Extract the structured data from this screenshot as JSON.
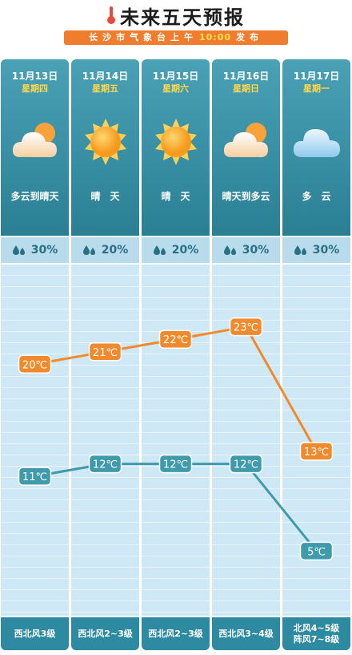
{
  "header": {
    "title": "未来五天预报",
    "issued_prefix": "长沙市气象台上午",
    "issued_time": "10:00",
    "issued_suffix": "发布"
  },
  "days": [
    {
      "date": "11月13日",
      "weekday": "星期四",
      "icon": "cloud-sun-icon",
      "condition": "多云到晴天",
      "precip": "30%",
      "wind": [
        "西北风3级"
      ]
    },
    {
      "date": "11月14日",
      "weekday": "星期五",
      "icon": "sun-icon",
      "condition": "晴　天",
      "precip": "20%",
      "wind": [
        "西北风2~3级"
      ]
    },
    {
      "date": "11月15日",
      "weekday": "星期六",
      "icon": "sun-icon",
      "condition": "晴　天",
      "precip": "20%",
      "wind": [
        "西北风2~3级"
      ]
    },
    {
      "date": "11月16日",
      "weekday": "星期日",
      "icon": "cloud-sun-icon",
      "condition": "晴天到多云",
      "precip": "30%",
      "wind": [
        "西北风3~4级"
      ]
    },
    {
      "date": "11月17日",
      "weekday": "星期一",
      "icon": "cloud-icon",
      "condition": "多　云",
      "precip": "30%",
      "wind": [
        "北风4~5级",
        "阵风7~8级"
      ]
    }
  ],
  "chart_data": {
    "type": "line",
    "categories": [
      "11月13日",
      "11月14日",
      "11月15日",
      "11月16日",
      "11月17日"
    ],
    "series": [
      {
        "values": [
          20,
          21,
          22,
          23,
          13
        ],
        "color": "#f08a2c"
      },
      {
        "values": [
          11,
          12,
          12,
          12,
          5
        ],
        "color": "#3f9aab"
      }
    ],
    "unit": "℃",
    "ylim": [
      0,
      28
    ],
    "grid": true
  }
}
